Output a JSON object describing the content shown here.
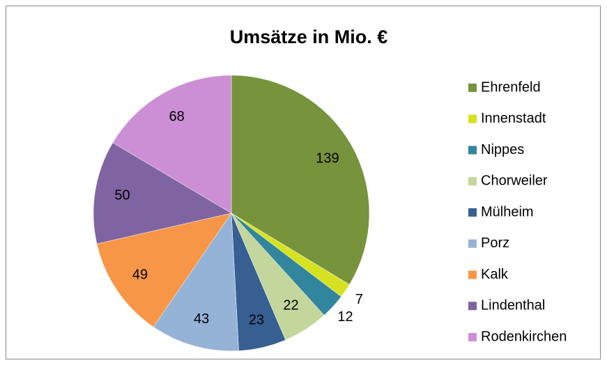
{
  "chart_data": {
    "type": "pie",
    "title": "Umsätze in Mio. €",
    "categories": [
      "Ehrenfeld",
      "Innenstadt",
      "Nippes",
      "Chorweiler",
      "Mülheim",
      "Porz",
      "Kalk",
      "Lindenthal",
      "Rodenkirchen"
    ],
    "values": [
      139,
      7,
      12,
      22,
      23,
      43,
      49,
      50,
      68
    ],
    "colors": [
      "#77933c",
      "#d6e221",
      "#31859c",
      "#c3d69b",
      "#375f92",
      "#95b3d7",
      "#f79646",
      "#8064a2",
      "#cc8fd6"
    ],
    "legend": "right"
  }
}
